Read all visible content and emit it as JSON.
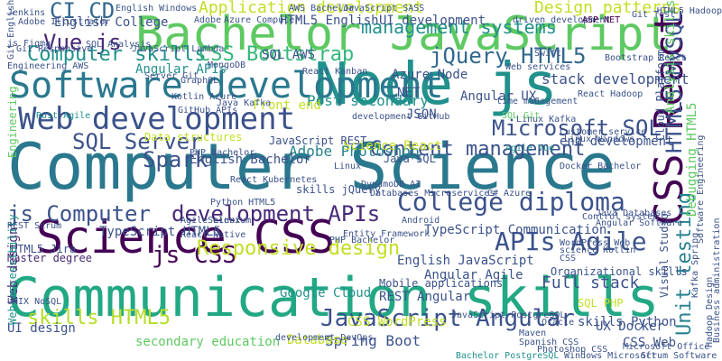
{
  "colors": {
    "background": "#ffffff",
    "palette": [
      "#440154",
      "#3b528b",
      "#21918c",
      "#5ec962",
      "#fde725"
    ]
  },
  "words": [
    {
      "text": "Computer Science",
      "color": "#2a788e"
    },
    {
      "text": "Communication skills",
      "color": "#22a884"
    },
    {
      "text": "Bachelor JavaScript",
      "color": "#5ec962"
    },
    {
      "text": "Node js",
      "color": "#21918c"
    },
    {
      "text": "CSS React",
      "color": "#440154"
    },
    {
      "text": "Software development",
      "color": "#2a788e"
    },
    {
      "text": "Web development",
      "color": "#3b528b"
    },
    {
      "text": "Science CSS",
      "color": "#440154"
    },
    {
      "text": "College diploma",
      "color": "#3b528b"
    },
    {
      "text": "APIs Agile",
      "color": "#3b528b"
    },
    {
      "text": "js Computer",
      "color": "#3b528b"
    },
    {
      "text": "development APIs",
      "color": "#482878"
    },
    {
      "text": "js CSS",
      "color": "#440154"
    },
    {
      "text": "Microsoft SQL",
      "color": "#3b528b"
    },
    {
      "text": "SQL Server",
      "color": "#3b528b"
    },
    {
      "text": "JavaScript Angular",
      "color": "#3b528b"
    },
    {
      "text": "Content management",
      "color": "#3b528b"
    },
    {
      "text": "Responsive design",
      "color": "#c2df23"
    },
    {
      "text": "Vue js",
      "color": "#482878"
    },
    {
      "text": "CI CD",
      "color": "#31688e"
    },
    {
      "text": "jQuery HTML5",
      "color": "#31688e"
    },
    {
      "text": "HTML5 MySQL",
      "color": "#3b528b"
    },
    {
      "text": "Computer skills",
      "color": "#21918c"
    },
    {
      "text": "CSS Bootstrap",
      "color": "#35b779"
    },
    {
      "text": "skills HTML5",
      "color": "#b5de2b"
    },
    {
      "text": "management systems",
      "color": "#21918c"
    },
    {
      "text": "Design patterns",
      "color": "#c2df23"
    },
    {
      "text": "Application development",
      "color": "#c2df23"
    },
    {
      "text": "Unit testing",
      "color": "#26828e"
    },
    {
      "text": "Adobe Photoshop",
      "color": "#26828e"
    },
    {
      "text": "Full stack",
      "color": "#3b528b"
    },
    {
      "text": "Spring Boot",
      "color": "#3b528b"
    },
    {
      "text": "Google Cloud",
      "color": "#21918c"
    },
    {
      "text": "skills Python",
      "color": "#3b528b"
    },
    {
      "text": "Angular APIs",
      "color": "#21918c"
    },
    {
      "text": "stack development",
      "color": "#3b528b"
    },
    {
      "text": "Web design",
      "color": "#482878"
    },
    {
      "text": "UI design",
      "color": "#3b528b"
    },
    {
      "text": "HTML5 Jira",
      "color": "#3b528b"
    },
    {
      "text": "Master degree",
      "color": "#482878"
    },
    {
      "text": "TypeScript HTML5",
      "color": "#3b528b"
    },
    {
      "text": "secondary education",
      "color": "#5ec962"
    },
    {
      "text": "Database",
      "color": "#c2df23"
    },
    {
      "text": "English JavaScript",
      "color": "#3b528b"
    },
    {
      "text": "Angular Agile",
      "color": "#3b528b"
    },
    {
      "text": "REST Angular",
      "color": "#3b528b"
    },
    {
      "text": "TypeScript Communication",
      "color": "#3b528b"
    },
    {
      "text": "SQL AWS",
      "color": "#3b528b"
    },
    {
      "text": "Azure Node",
      "color": "#3b528b"
    },
    {
      "text": "NET",
      "color": "#3b528b"
    },
    {
      "text": "Angular UX",
      "color": "#3b528b"
    },
    {
      "text": "JSON",
      "color": "#3b528b"
    },
    {
      "text": "Post secondary",
      "color": "#21918c"
    },
    {
      "text": "Front end",
      "color": "#c2df23"
    },
    {
      "text": "Data structures",
      "color": "#c2df23"
    },
    {
      "text": "Science React",
      "color": "#c2df23"
    },
    {
      "text": "end development",
      "color": "#3b528b"
    },
    {
      "text": "JavaScript REST",
      "color": "#3b528b"
    },
    {
      "text": "English Bachelor",
      "color": "#3b528b"
    },
    {
      "text": "Java SQL",
      "color": "#3b528b"
    },
    {
      "text": "English College",
      "color": "#3b528b"
    },
    {
      "text": "HTML5 English",
      "color": "#3b528b"
    },
    {
      "text": "UI development",
      "color": "#3b528b"
    },
    {
      "text": "Analysis skills",
      "color": "#5ec962"
    },
    {
      "text": "Cloud Platform",
      "color": "#3b528b"
    },
    {
      "text": "Debugging HTML5",
      "color": "#5ec962"
    },
    {
      "text": "Web accessibility",
      "color": "#21918c"
    },
    {
      "text": "Engineering",
      "color": "#5ec962"
    },
    {
      "text": "CSS WordPress",
      "color": "#c2df23"
    },
    {
      "text": "UX Docker",
      "color": "#3b528b"
    },
    {
      "text": "SQL PHP",
      "color": "#c2df23"
    },
    {
      "text": "Mobile applications",
      "color": "#3b528b"
    },
    {
      "text": "Organizational skills",
      "color": "#3b528b"
    },
    {
      "text": "CSS Web",
      "color": "#3b528b"
    },
    {
      "text": "Python HTML5",
      "color": "#3b528b"
    },
    {
      "text": "skills jQuery",
      "color": "#3b528b"
    },
    {
      "text": "Linux",
      "color": "#3b528b"
    },
    {
      "text": "React Kubernetes",
      "color": "#3b528b"
    },
    {
      "text": "Agile Linux",
      "color": "#3b528b"
    },
    {
      "text": "React Native",
      "color": "#3b528b"
    },
    {
      "text": "Visual Studio",
      "color": "#3b528b"
    },
    {
      "text": "Kafka Spring",
      "color": "#3b528b"
    },
    {
      "text": "Azure Computer",
      "color": "#3b528b"
    },
    {
      "text": "JavaScript SASS",
      "color": "#3b528b"
    },
    {
      "text": "driven development",
      "color": "#3b528b"
    },
    {
      "text": "ASP NET",
      "color": "#440154"
    },
    {
      "text": "Git Test",
      "color": "#3b528b"
    },
    {
      "text": "Jenkins",
      "color": "#3b528b"
    },
    {
      "text": "English Windows",
      "color": "#3b528b"
    },
    {
      "text": "Adobe",
      "color": "#3b528b"
    },
    {
      "text": "HTML5 Hadoop",
      "color": "#3b528b"
    },
    {
      "text": "SQL Analysis",
      "color": "#3b528b"
    },
    {
      "text": "Angular Software",
      "color": "#3b528b"
    },
    {
      "text": "Java Databases",
      "color": "#3b528b"
    },
    {
      "text": "Scrum Software",
      "color": "#3b528b"
    },
    {
      "text": "Microsoft Office",
      "color": "#3b528b"
    },
    {
      "text": "Oracle",
      "color": "#3b528b"
    },
    {
      "text": "Maven",
      "color": "#3b528b"
    },
    {
      "text": "Photoshop CSS",
      "color": "#3b528b"
    },
    {
      "text": "JavaScript PostgreSQL",
      "color": "#3b528b"
    },
    {
      "text": "Bachelor PostgreSQL",
      "color": "#21918c"
    },
    {
      "text": "Windows Microsoft",
      "color": "#3b528b"
    },
    {
      "text": "Spanish CSS",
      "color": "#3b528b"
    },
    {
      "text": "development DevOps",
      "color": "#3b528b"
    },
    {
      "text": "Adobe Illustrator",
      "color": "#3b528b"
    },
    {
      "text": "Kotlin Azure",
      "color": "#3b528b"
    },
    {
      "text": "PHP Bachelor",
      "color": "#3b528b"
    },
    {
      "text": "DynamoDB AI",
      "color": "#3b528b"
    },
    {
      "text": "Databases Microservices",
      "color": "#3b528b"
    },
    {
      "text": "Entity Framework",
      "color": "#3b528b"
    },
    {
      "text": "science Kotlin",
      "color": "#3b528b"
    },
    {
      "text": "WordPress Web",
      "color": "#3b528b"
    },
    {
      "text": "REST Scrum",
      "color": "#3b528b"
    },
    {
      "text": "UNIX NoSQL",
      "color": "#3b528b"
    },
    {
      "text": "Selenium",
      "color": "#3b528b"
    },
    {
      "text": "Android",
      "color": "#3b528b"
    },
    {
      "text": "Swift",
      "color": "#3b528b"
    },
    {
      "text": "GraphQL",
      "color": "#3b528b"
    },
    {
      "text": "MongoDB",
      "color": "#3b528b"
    },
    {
      "text": "Git English",
      "color": "#3b528b"
    },
    {
      "text": "Git Responsive",
      "color": "#3b528b"
    },
    {
      "text": "Engineering AWS",
      "color": "#3b528b"
    },
    {
      "text": "js Figma",
      "color": "#3b528b"
    },
    {
      "text": "JavaScript Lambda",
      "color": "#3b528b"
    },
    {
      "text": "AWS Bachelor",
      "color": "#3b528b"
    },
    {
      "text": "Server Git",
      "color": "#3b528b"
    },
    {
      "text": "React Kanban",
      "color": "#3b528b"
    },
    {
      "text": "Web services",
      "color": "#3b528b"
    },
    {
      "text": "React Hadoop",
      "color": "#3b528b"
    },
    {
      "text": "Bootstrap React",
      "color": "#3b528b"
    },
    {
      "text": "time management",
      "color": "#3b528b"
    },
    {
      "text": "development GitHub",
      "color": "#3b528b"
    },
    {
      "text": "GitHub APIs",
      "color": "#3b528b"
    },
    {
      "text": "Linux Kafka",
      "color": "#3b528b"
    },
    {
      "text": "Docker Bachelor",
      "color": "#3b528b"
    },
    {
      "text": "Java Kafka",
      "color": "#3b528b"
    },
    {
      "text": "Control system",
      "color": "#3b528b"
    },
    {
      "text": "Customer service",
      "color": "#3b528b"
    },
    {
      "text": "Linux Windows",
      "color": "#3b528b"
    },
    {
      "text": "Agile Vue",
      "color": "#21918c"
    },
    {
      "text": "C",
      "color": "#3b528b"
    },
    {
      "text": "Spark",
      "color": "#3b528b"
    },
    {
      "text": "C# Azure",
      "color": "#3b528b"
    },
    {
      "text": "Rust Agile",
      "color": "#21918c"
    },
    {
      "text": "SQL Git",
      "color": "#5ec962"
    },
    {
      "text": "CSS",
      "color": "#3b528b"
    },
    {
      "text": "PHP Bachelor",
      "color": "#3b528b"
    },
    {
      "text": "Hadoop Design",
      "color": "#3b528b"
    },
    {
      "text": "Software Engineering",
      "color": "#3b528b"
    },
    {
      "text": "Business administration",
      "color": "#3b528b"
    }
  ]
}
